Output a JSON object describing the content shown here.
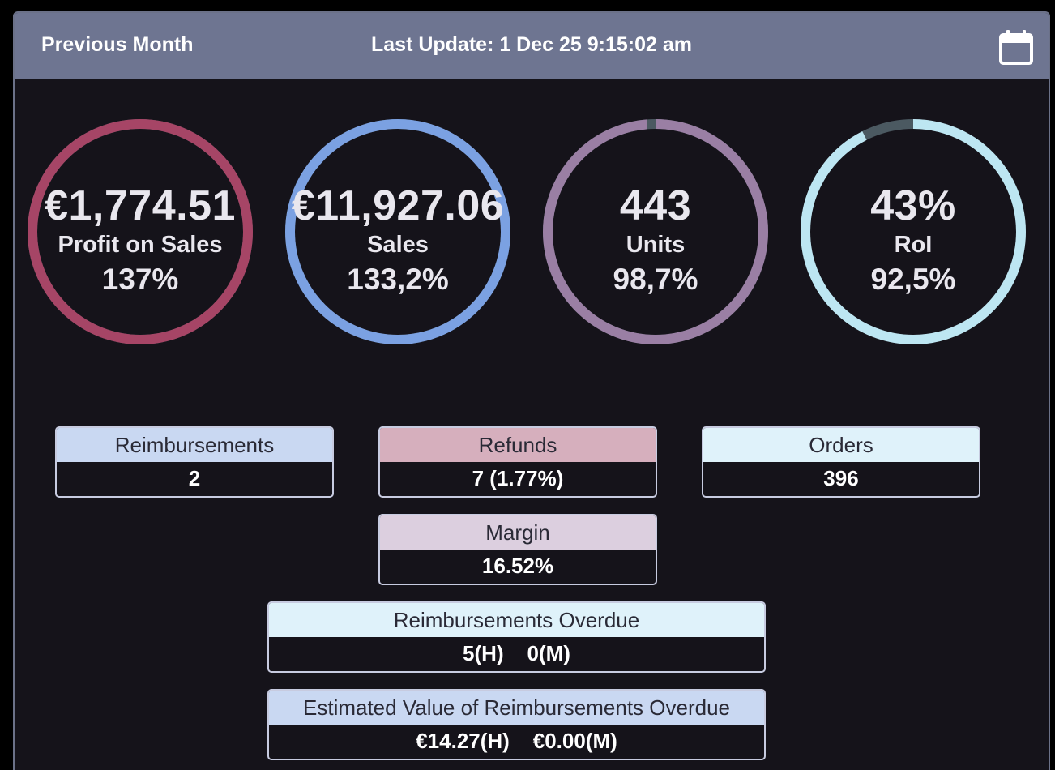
{
  "header": {
    "title": "Previous Month",
    "last_update": "Last Update: 1 Dec 25 9:15:02 am",
    "calendar_icon": "calendar-icon"
  },
  "gauges": [
    {
      "value": "€1,774.51",
      "label": "Profit on Sales",
      "percent": "137%",
      "fill": 1.0,
      "color": "#a64566"
    },
    {
      "value": "€11,927.06",
      "label": "Sales",
      "percent": "133,2%",
      "fill": 1.0,
      "color": "#7ba1e2"
    },
    {
      "value": "443",
      "label": "Units",
      "percent": "98,7%",
      "fill": 0.987,
      "color": "#9a7fa4"
    },
    {
      "value": "43%",
      "label": "RoI",
      "percent": "92,5%",
      "fill": 0.925,
      "color": "#bde6f2"
    }
  ],
  "gauge_track_color": "#4b5961",
  "metrics": {
    "reimbursements": {
      "label": "Reimbursements",
      "value": "2",
      "color": "#c9d8f2"
    },
    "refunds": {
      "label": "Refunds",
      "value": "7 (1.77%)",
      "color": "#d6afbd"
    },
    "orders": {
      "label": "Orders",
      "value": "396",
      "color": "#dff2fa"
    },
    "margin": {
      "label": "Margin",
      "value": "16.52%",
      "color": "#dccfdf"
    },
    "overdue": {
      "label": "Reimbursements Overdue",
      "value": "5(H)    0(M)",
      "color": "#dff2fa"
    },
    "estimated": {
      "label": "Estimated Value of Reimbursements Overdue",
      "value": "€14.27(H)    €0.00(M)",
      "color": "#c9d8f2"
    }
  }
}
